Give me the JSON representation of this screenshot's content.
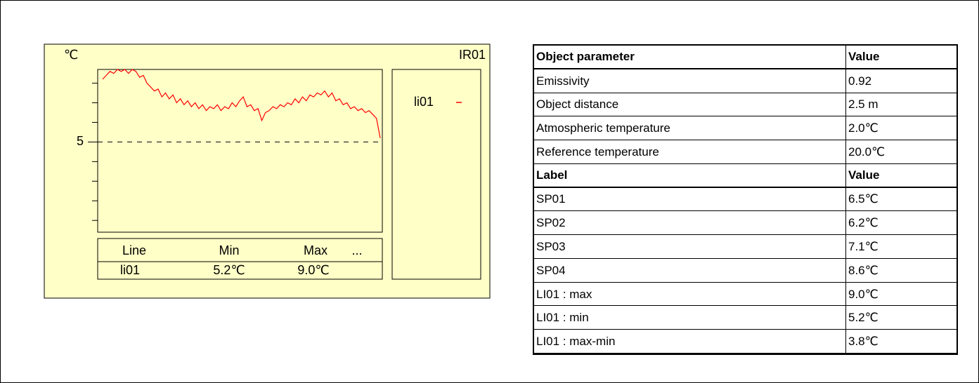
{
  "chart_data": {
    "type": "line",
    "unit": "℃",
    "title": "IR01",
    "series": [
      {
        "name": "li01",
        "color": "#ff0000",
        "values": [
          8.2,
          8.4,
          8.6,
          8.5,
          8.7,
          8.6,
          8.7,
          8.5,
          8.7,
          8.6,
          8.3,
          8.4,
          8.0,
          7.8,
          7.6,
          7.7,
          7.3,
          7.5,
          7.2,
          7.4,
          7.0,
          7.2,
          6.9,
          7.1,
          6.8,
          7.0,
          6.7,
          6.9,
          6.6,
          6.8,
          6.7,
          6.9,
          6.6,
          6.8,
          6.7,
          7.0,
          6.8,
          7.1,
          7.3,
          6.8,
          6.9,
          6.6,
          6.7,
          6.1,
          6.5,
          6.6,
          6.8,
          6.7,
          6.9,
          6.8,
          7.0,
          6.9,
          7.2,
          7.0,
          7.3,
          7.1,
          7.4,
          7.3,
          7.5,
          7.4,
          7.6,
          7.3,
          7.5,
          7.1,
          7.2,
          6.9,
          7.0,
          6.7,
          6.8,
          6.6,
          6.7,
          6.5,
          6.6,
          6.4,
          6.2,
          5.2
        ]
      }
    ],
    "ylim": [
      0.4,
      8.7
    ],
    "yticks": [
      5
    ],
    "minor_yticks": [
      1,
      2,
      3,
      4,
      6,
      7,
      8
    ],
    "grid": true
  },
  "stats": {
    "headers": [
      "Line",
      "Min",
      "Max",
      "..."
    ],
    "rows": [
      [
        "li01",
        "5.2℃",
        "9.0℃"
      ]
    ]
  },
  "parameters": {
    "headers": [
      "Object parameter",
      "Value"
    ],
    "rows": [
      [
        "Emissivity",
        "0.92"
      ],
      [
        "Object distance",
        "2.5 m"
      ],
      [
        "Atmospheric temperature",
        "2.0℃"
      ],
      [
        "Reference temperature",
        "20.0℃"
      ]
    ]
  },
  "labels": {
    "headers": [
      "Label",
      "Value"
    ],
    "rows": [
      [
        "SP01",
        "6.5℃"
      ],
      [
        "SP02",
        "6.2℃"
      ],
      [
        "SP03",
        "7.1℃"
      ],
      [
        "SP04",
        "8.6℃"
      ],
      [
        "LI01 : max",
        "9.0℃"
      ],
      [
        "LI01 : min",
        "5.2℃"
      ],
      [
        "LI01 : max-min",
        "3.8℃"
      ]
    ]
  }
}
